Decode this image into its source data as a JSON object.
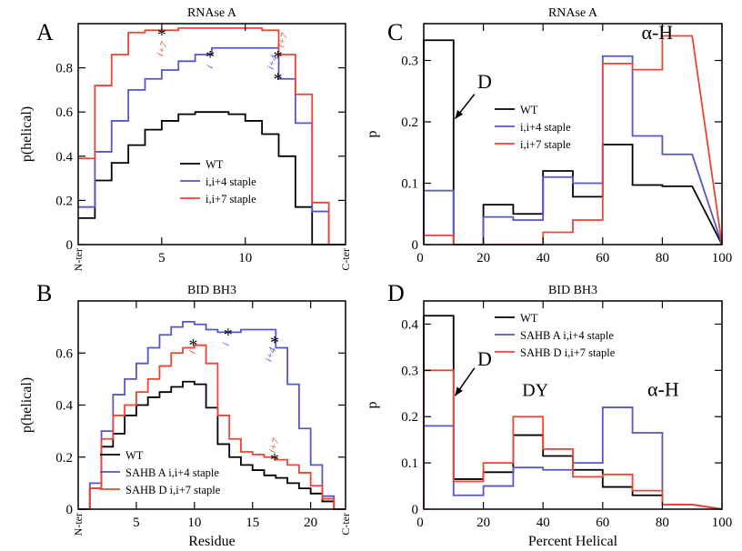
{
  "chart_data": [
    {
      "panel": "A",
      "title": "RNAse A",
      "type": "line",
      "step": true,
      "xlabel": "",
      "ylabel": "p(helical)",
      "xlim": [
        0,
        16
      ],
      "ylim": [
        0,
        1
      ],
      "xticks": [
        "5",
        "10"
      ],
      "xtick_values": [
        5,
        10
      ],
      "yticks": [
        "0",
        "0.2",
        "0.4",
        "0.6",
        "0.8"
      ],
      "ytick_values": [
        0,
        0.2,
        0.4,
        0.6,
        0.8
      ],
      "x_end_labels": [
        "N-ter",
        "C-ter"
      ],
      "legend": "lower-center",
      "x": [
        0,
        1,
        2,
        3,
        4,
        5,
        6,
        7,
        8,
        9,
        10,
        11,
        12,
        13,
        14,
        15
      ],
      "series": [
        {
          "name": "WT",
          "color": "#000000",
          "values": [
            0.12,
            0.29,
            0.37,
            0.45,
            0.52,
            0.56,
            0.59,
            0.6,
            0.6,
            0.59,
            0.56,
            0.5,
            0.4,
            0.17,
            0.0,
            0.0
          ]
        },
        {
          "name": "i,i+4 staple",
          "color": "#5555cc",
          "values": [
            0.17,
            0.42,
            0.56,
            0.7,
            0.75,
            0.79,
            0.83,
            0.86,
            0.89,
            0.89,
            0.89,
            0.89,
            0.75,
            0.55,
            0.15,
            0.0
          ]
        },
        {
          "name": "i,i+7 staple",
          "color": "#ee4433",
          "values": [
            0.39,
            0.72,
            0.86,
            0.96,
            0.97,
            0.97,
            0.98,
            0.98,
            0.98,
            0.98,
            0.98,
            0.97,
            0.86,
            0.68,
            0.19,
            0.0
          ]
        }
      ],
      "annotations": [
        {
          "text": "i+7",
          "x": 5.2,
          "y": 0.88,
          "color": "#ee4433",
          "rotate": -70
        },
        {
          "text": "i",
          "x": 8.05,
          "y": 0.8,
          "color": "#5555cc",
          "rotate": -70
        },
        {
          "text": "i+7",
          "x": 12.4,
          "y": 0.92,
          "color": "#ee4433",
          "rotate": -70
        },
        {
          "text": "i+4",
          "x": 11.8,
          "y": 0.82,
          "color": "#5555cc",
          "rotate": -70
        }
      ],
      "markers": [
        {
          "x": 5.0,
          "y": 0.96
        },
        {
          "x": 7.9,
          "y": 0.86
        },
        {
          "x": 11.95,
          "y": 0.86
        },
        {
          "x": 11.95,
          "y": 0.76
        }
      ]
    },
    {
      "panel": "B",
      "title": "BID BH3",
      "type": "line",
      "step": true,
      "xlabel": "Residue",
      "ylabel": "p(helical)",
      "xlim": [
        0,
        23
      ],
      "ylim": [
        0,
        0.8
      ],
      "xticks": [
        "5",
        "10",
        "15",
        "20"
      ],
      "xtick_values": [
        5,
        10,
        15,
        20
      ],
      "yticks": [
        "0",
        "0.2",
        "0.4",
        "0.6"
      ],
      "ytick_values": [
        0,
        0.2,
        0.4,
        0.6
      ],
      "x_end_labels": [
        "N-ter",
        "C-ter"
      ],
      "legend": "lower-left",
      "x": [
        0,
        1,
        2,
        3,
        4,
        5,
        6,
        7,
        8,
        9,
        10,
        11,
        12,
        13,
        14,
        15,
        16,
        17,
        18,
        19,
        20,
        21,
        22
      ],
      "series": [
        {
          "name": "WT",
          "color": "#000000",
          "values": [
            0.0,
            0.08,
            0.24,
            0.29,
            0.36,
            0.4,
            0.43,
            0.45,
            0.47,
            0.49,
            0.48,
            0.39,
            0.25,
            0.2,
            0.17,
            0.15,
            0.13,
            0.12,
            0.1,
            0.08,
            0.06,
            0.03,
            0.0
          ]
        },
        {
          "name": "SAHB A i,i+4 staple",
          "color": "#5555cc",
          "values": [
            0.0,
            0.1,
            0.3,
            0.44,
            0.5,
            0.56,
            0.62,
            0.67,
            0.7,
            0.72,
            0.71,
            0.69,
            0.68,
            0.68,
            0.69,
            0.69,
            0.69,
            0.62,
            0.48,
            0.31,
            0.17,
            0.05,
            0.0
          ]
        },
        {
          "name": "SAHB D i,i+7 staple",
          "color": "#ee4433",
          "values": [
            0.0,
            0.08,
            0.27,
            0.36,
            0.4,
            0.45,
            0.5,
            0.55,
            0.6,
            0.62,
            0.63,
            0.56,
            0.36,
            0.27,
            0.22,
            0.21,
            0.2,
            0.19,
            0.17,
            0.14,
            0.09,
            0.04,
            0.0
          ]
        }
      ],
      "annotations": [
        {
          "text": "i",
          "x": 10.05,
          "y": 0.6,
          "color": "#ee4433",
          "rotate": -70
        },
        {
          "text": "i",
          "x": 12.95,
          "y": 0.63,
          "color": "#5555cc",
          "rotate": -70
        },
        {
          "text": "i+4",
          "x": 16.8,
          "y": 0.59,
          "color": "#5555cc",
          "rotate": -70
        },
        {
          "text": "i+7",
          "x": 17.1,
          "y": 0.24,
          "color": "#ee4433",
          "rotate": -70
        }
      ],
      "markers": [
        {
          "x": 9.9,
          "y": 0.64
        },
        {
          "x": 12.9,
          "y": 0.68
        },
        {
          "x": 16.9,
          "y": 0.65
        },
        {
          "x": 16.9,
          "y": 0.2
        }
      ]
    },
    {
      "panel": "C",
      "title": "RNAse A",
      "type": "line",
      "step": true,
      "xlabel": "",
      "ylabel": "p",
      "xlim": [
        0,
        100
      ],
      "ylim": [
        0,
        0.36
      ],
      "xticks": [
        "20",
        "40",
        "60",
        "80",
        "100"
      ],
      "xtick_values": [
        20,
        40,
        60,
        80,
        100
      ],
      "yticks": [
        "0",
        "0.1",
        "0.2",
        "0.3"
      ],
      "ytick_values": [
        0,
        0.1,
        0.2,
        0.3
      ],
      "legend": "center-left",
      "bin_edges": [
        0,
        10,
        20,
        30,
        40,
        50,
        60,
        70,
        80,
        90
      ],
      "series": [
        {
          "name": "WT",
          "color": "#000000",
          "values": [
            0.333,
            0.0,
            0.065,
            0.05,
            0.12,
            0.078,
            0.163,
            0.097,
            0.095
          ]
        },
        {
          "name": "i,i+4 staple",
          "color": "#5555cc",
          "values": [
            0.088,
            0.0,
            0.045,
            0.04,
            0.11,
            0.1,
            0.307,
            0.177,
            0.147
          ]
        },
        {
          "name": "i,i+7 staple",
          "color": "#ee4433",
          "values": [
            0.015,
            0.0,
            0.0,
            0.0,
            0.02,
            0.04,
            0.295,
            0.285,
            0.34
          ]
        }
      ],
      "text_labels": [
        {
          "text": "D",
          "x": 18,
          "y": 0.255,
          "size": 22
        },
        {
          "text": "α-H",
          "x": 73,
          "y": 0.335,
          "size": 22
        }
      ],
      "arrows": [
        {
          "from": [
            17,
            0.245
          ],
          "to": [
            10.5,
            0.205
          ]
        }
      ]
    },
    {
      "panel": "D",
      "title": "BID BH3",
      "type": "line",
      "step": true,
      "xlabel": "Percent Helical",
      "ylabel": "p",
      "xlim": [
        0,
        100
      ],
      "ylim": [
        0,
        0.45
      ],
      "xticks": [
        "20",
        "40",
        "60",
        "80",
        "100"
      ],
      "xtick_values": [
        20,
        40,
        60,
        80,
        100
      ],
      "yticks": [
        "0",
        "0.1",
        "0.2",
        "0.3",
        "0.4"
      ],
      "ytick_values": [
        0,
        0.1,
        0.2,
        0.3,
        0.4
      ],
      "legend": "top-center",
      "bin_edges": [
        0,
        10,
        20,
        30,
        40,
        50,
        60,
        70,
        80,
        90
      ],
      "series": [
        {
          "name": "WT",
          "color": "#000000",
          "values": [
            0.418,
            0.065,
            0.08,
            0.16,
            0.115,
            0.085,
            0.048,
            0.03,
            0.01
          ]
        },
        {
          "name": "SAHB A i,i+4 staple",
          "color": "#5555cc",
          "values": [
            0.18,
            0.03,
            0.05,
            0.09,
            0.085,
            0.1,
            0.22,
            0.165,
            0.01
          ]
        },
        {
          "name": "SAHB D i,i+7 staple",
          "color": "#ee4433",
          "values": [
            0.3,
            0.06,
            0.1,
            0.2,
            0.13,
            0.07,
            0.075,
            0.04,
            0.01
          ]
        }
      ],
      "text_labels": [
        {
          "text": "D",
          "x": 18,
          "y": 0.31,
          "size": 22
        },
        {
          "text": "DY",
          "x": 33,
          "y": 0.245,
          "size": 20
        },
        {
          "text": "α-H",
          "x": 75,
          "y": 0.245,
          "size": 22
        }
      ],
      "arrows": [
        {
          "from": [
            17,
            0.305
          ],
          "to": [
            10.5,
            0.245
          ]
        }
      ]
    }
  ]
}
